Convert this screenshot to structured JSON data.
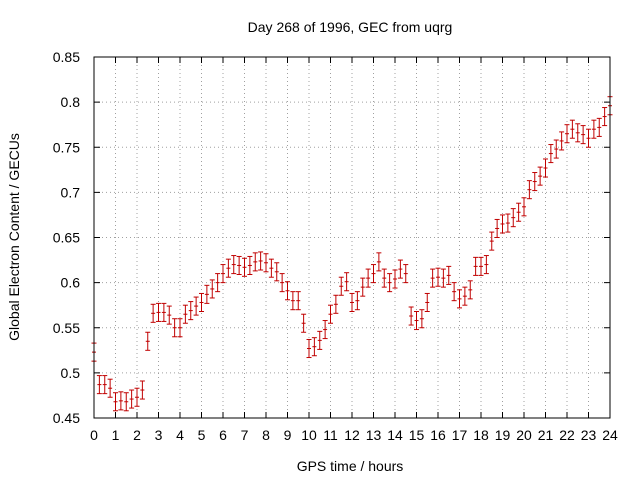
{
  "chart_data": {
    "type": "scatter",
    "title": "Day 268 of 1996, GEC from uqrg",
    "xlabel": "GPS time / hours",
    "ylabel": "Global Electron Content / GECUs",
    "xlim": [
      0,
      24
    ],
    "ylim": [
      0.45,
      0.85
    ],
    "xticks": [
      0,
      1,
      2,
      3,
      4,
      5,
      6,
      7,
      8,
      9,
      10,
      11,
      12,
      13,
      14,
      15,
      16,
      17,
      18,
      19,
      20,
      21,
      22,
      23,
      24
    ],
    "xtick_labels": [
      "0",
      "1",
      "2",
      "3",
      "4",
      "5",
      "6",
      "7",
      "8",
      "9",
      "10",
      "11",
      "12",
      "13",
      "14",
      "15",
      "16",
      "17",
      "18",
      "19",
      "20",
      "21",
      "22",
      "23",
      "24"
    ],
    "yticks": [
      0.45,
      0.5,
      0.55,
      0.6,
      0.65,
      0.7,
      0.75,
      0.8,
      0.85
    ],
    "ytick_labels": [
      "0.45",
      "0.5",
      "0.55",
      "0.6",
      "0.65",
      "0.7",
      "0.75",
      "0.8",
      "0.85"
    ],
    "grid": true,
    "color": "#c00000",
    "error": 0.01,
    "series": [
      {
        "x": [
          0,
          0.25,
          0.5,
          0.75,
          1,
          1.25,
          1.5,
          1.75,
          2,
          2.25,
          2.5,
          2.75,
          3,
          3.25,
          3.5,
          3.75,
          4,
          4.25,
          4.5,
          4.75,
          5,
          5.25,
          5.5,
          5.75,
          6,
          6.25,
          6.5,
          6.75,
          7,
          7.25,
          7.5,
          7.75,
          8,
          8.25,
          8.5,
          8.75,
          9,
          9.25,
          9.5,
          9.75,
          10,
          10.25,
          10.5,
          10.75,
          11,
          11.25,
          11.5,
          11.75,
          12,
          12.25,
          12.5,
          12.75,
          13,
          13.25,
          13.5,
          13.75,
          14,
          14.25,
          14.5,
          14.75,
          15,
          15.25,
          15.5,
          15.75,
          16,
          16.25,
          16.5,
          16.75,
          17,
          17.25,
          17.5,
          17.75,
          18,
          18.25,
          18.5,
          18.75,
          19,
          19.25,
          19.5,
          19.75,
          20,
          20.25,
          20.5,
          20.75,
          21,
          21.25,
          21.5,
          21.75,
          22,
          22.25,
          22.5,
          22.75,
          23,
          23.25,
          23.5,
          23.75,
          24
        ],
        "y": [
          0.523,
          0.487,
          0.487,
          0.483,
          0.468,
          0.469,
          0.468,
          0.471,
          0.473,
          0.481,
          0.535,
          0.566,
          0.567,
          0.567,
          0.564,
          0.55,
          0.55,
          0.565,
          0.569,
          0.574,
          0.578,
          0.587,
          0.593,
          0.6,
          0.61,
          0.616,
          0.62,
          0.619,
          0.617,
          0.619,
          0.623,
          0.624,
          0.622,
          0.616,
          0.612,
          0.6,
          0.591,
          0.58,
          0.58,
          0.555,
          0.527,
          0.529,
          0.536,
          0.548,
          0.565,
          0.576,
          0.596,
          0.601,
          0.578,
          0.58,
          0.595,
          0.605,
          0.61,
          0.623,
          0.605,
          0.6,
          0.604,
          0.615,
          0.61,
          0.563,
          0.558,
          0.56,
          0.578,
          0.605,
          0.606,
          0.605,
          0.608,
          0.59,
          0.582,
          0.585,
          0.592,
          0.618,
          0.618,
          0.62,
          0.646,
          0.66,
          0.665,
          0.666,
          0.672,
          0.678,
          0.684,
          0.703,
          0.712,
          0.718,
          0.727,
          0.743,
          0.748,
          0.757,
          0.765,
          0.77,
          0.766,
          0.764,
          0.76,
          0.77,
          0.772,
          0.784,
          0.796
        ]
      }
    ]
  }
}
